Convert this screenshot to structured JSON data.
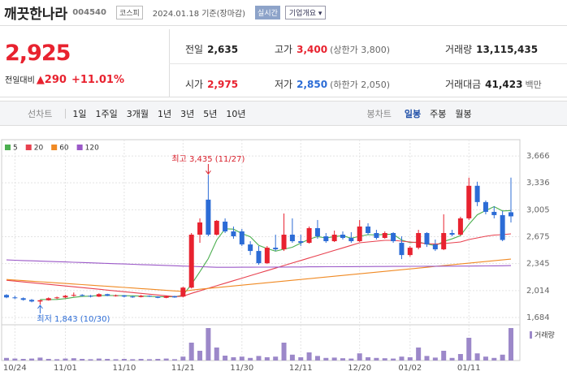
{
  "header": {
    "name": "깨끗한나라",
    "code": "004540",
    "market": "코스피",
    "date": "2024.01.18 기준(장마감)",
    "realtime": "실시간",
    "company_button": "기업개요"
  },
  "quote": {
    "price": "2,925",
    "change_label": "전일대비",
    "change": "▲290",
    "change_rate": "+11.01%",
    "cells": [
      {
        "label": "전일",
        "value": "2,635"
      },
      {
        "label": "고가",
        "value": "3,400",
        "extra": "(상한가 3,800)"
      },
      {
        "label": "거래량",
        "value": "13,115,435"
      },
      {
        "label": "시가",
        "value": "2,975"
      },
      {
        "label": "저가",
        "value": "2,850",
        "extra": "(하한가 2,050)"
      },
      {
        "label": "거래대금",
        "value": "41,423",
        "extra": "백만"
      }
    ]
  },
  "tabs": {
    "line_label": "선차트",
    "line_periods": [
      "1일",
      "1주일",
      "3개월",
      "1년",
      "3년",
      "5년",
      "10년"
    ],
    "candle_label": "봉차트",
    "candle_periods": [
      "일봉",
      "주봉",
      "월봉"
    ],
    "active": "일봉"
  },
  "chart_data": {
    "type": "candlestick",
    "categories": [
      null,
      "10/24",
      null,
      null,
      null,
      null,
      null,
      "11/01",
      null,
      null,
      null,
      null,
      null,
      null,
      "11/10",
      null,
      null,
      null,
      null,
      null,
      null,
      "11/21",
      null,
      null,
      null,
      null,
      null,
      null,
      "11/30",
      null,
      null,
      null,
      null,
      null,
      null,
      "12/11",
      null,
      null,
      null,
      null,
      null,
      null,
      "12/20",
      null,
      null,
      null,
      null,
      null,
      "01/02",
      null,
      null,
      null,
      null,
      null,
      null,
      "01/11",
      null,
      null,
      null,
      null,
      null
    ],
    "open": [
      1960,
      1930,
      1920,
      1900,
      1880,
      1895,
      1920,
      1930,
      1950,
      1960,
      1950,
      1940,
      1970,
      1950,
      1955,
      1940,
      1935,
      1950,
      1940,
      1925,
      1945,
      1940,
      2050,
      2700,
      3130,
      2700,
      2860,
      2740,
      2740,
      2580,
      2500,
      2350,
      2540,
      2520,
      2700,
      2620,
      2600,
      2780,
      2680,
      2620,
      2700,
      2660,
      2620,
      2800,
      2720,
      2660,
      2720,
      2600,
      2450,
      2540,
      2720,
      2580,
      2520,
      2720,
      2700,
      2900,
      3300,
      3100,
      2980,
      2940,
      2975
    ],
    "high": [
      1970,
      1950,
      1930,
      1910,
      1900,
      1930,
      1940,
      1960,
      1990,
      1970,
      1960,
      1980,
      1975,
      1965,
      1960,
      1950,
      1960,
      1955,
      1945,
      1950,
      1950,
      2060,
      2720,
      2900,
      3435,
      2880,
      2900,
      2800,
      2770,
      2620,
      2560,
      2560,
      2700,
      2960,
      2900,
      2700,
      2800,
      2880,
      2720,
      2750,
      2740,
      2730,
      2880,
      2840,
      2760,
      2740,
      2730,
      2680,
      2560,
      2760,
      2730,
      2640,
      2950,
      2760,
      2920,
      3400,
      3350,
      3120,
      3050,
      2990,
      3400
    ],
    "low": [
      1920,
      1910,
      1890,
      1870,
      1843,
      1890,
      1910,
      1920,
      1940,
      1940,
      1930,
      1935,
      1945,
      1940,
      1930,
      1925,
      1930,
      1935,
      1920,
      1920,
      1925,
      1930,
      2040,
      2600,
      2680,
      2690,
      2720,
      2650,
      2560,
      2450,
      2330,
      2340,
      2500,
      2500,
      2600,
      2560,
      2590,
      2650,
      2600,
      2610,
      2640,
      2600,
      2610,
      2700,
      2640,
      2650,
      2600,
      2400,
      2430,
      2520,
      2550,
      2500,
      2510,
      2680,
      2690,
      2880,
      3050,
      2950,
      2900,
      2620,
      2850
    ],
    "close": [
      1930,
      1920,
      1900,
      1880,
      1895,
      1920,
      1930,
      1950,
      1960,
      1950,
      1940,
      1970,
      1950,
      1955,
      1940,
      1935,
      1950,
      1940,
      1925,
      1945,
      1930,
      2050,
      2700,
      2850,
      2700,
      2870,
      2740,
      2680,
      2580,
      2500,
      2350,
      2540,
      2520,
      2700,
      2620,
      2600,
      2780,
      2680,
      2620,
      2700,
      2660,
      2620,
      2800,
      2720,
      2660,
      2720,
      2620,
      2450,
      2540,
      2720,
      2580,
      2520,
      2720,
      2700,
      2900,
      3300,
      3100,
      2980,
      2940,
      2635,
      2925
    ],
    "up_color": "#e8222f",
    "down_color": "#2c6cd6",
    "ma": [
      {
        "name": "5",
        "color": "#4caf50",
        "values": [
          null,
          null,
          null,
          null,
          1905,
          1903,
          1905,
          1915,
          1931,
          1942,
          1946,
          1954,
          1954,
          1953,
          1951,
          1950,
          1946,
          1944,
          1938,
          1939,
          1938,
          1958,
          2090,
          2245,
          2406,
          2634,
          2772,
          2768,
          2714,
          2674,
          2570,
          2530,
          2498,
          2522,
          2546,
          2596,
          2644,
          2676,
          2660,
          2676,
          2688,
          2656,
          2680,
          2700,
          2696,
          2704,
          2704,
          2634,
          2602,
          2610,
          2586,
          2566,
          2616,
          2648,
          2688,
          2828,
          2944,
          2996,
          3044,
          2991,
          2996
        ]
      },
      {
        "name": "20",
        "color": "#e8414f",
        "values": [
          2140,
          2130,
          2120,
          2110,
          2100,
          2090,
          2080,
          2070,
          2060,
          2050,
          2040,
          2030,
          2020,
          2010,
          2000,
          1990,
          1980,
          1970,
          1960,
          1950,
          1940,
          1945,
          1980,
          2011,
          2042,
          2073,
          2104,
          2135,
          2166,
          2197,
          2228,
          2259,
          2290,
          2321,
          2352,
          2383,
          2414,
          2445,
          2476,
          2507,
          2538,
          2569,
          2600,
          2610,
          2620,
          2630,
          2630,
          2620,
          2610,
          2600,
          2590,
          2585,
          2590,
          2600,
          2610,
          2640,
          2660,
          2680,
          2695,
          2700,
          2710
        ]
      },
      {
        "name": "60",
        "color": "#f08a24",
        "values": [
          2150,
          2143,
          2136,
          2129,
          2122,
          2115,
          2108,
          2101,
          2094,
          2087,
          2080,
          2073,
          2066,
          2059,
          2052,
          2045,
          2038,
          2031,
          2024,
          2017,
          2010,
          2005,
          2020,
          2030,
          2040,
          2050,
          2060,
          2070,
          2080,
          2090,
          2100,
          2110,
          2120,
          2130,
          2140,
          2150,
          2160,
          2170,
          2180,
          2190,
          2200,
          2210,
          2220,
          2230,
          2240,
          2250,
          2260,
          2270,
          2280,
          2290,
          2300,
          2310,
          2320,
          2330,
          2340,
          2350,
          2360,
          2370,
          2380,
          2390,
          2400
        ]
      },
      {
        "name": "120",
        "color": "#9b59c8",
        "values": [
          2390,
          2386,
          2382,
          2379,
          2375,
          2372,
          2368,
          2365,
          2361,
          2358,
          2354,
          2350,
          2347,
          2343,
          2340,
          2336,
          2332,
          2329,
          2325,
          2322,
          2318,
          2314,
          2311,
          2307,
          2304,
          2300,
          2300,
          2300,
          2301,
          2301,
          2302,
          2302,
          2303,
          2303,
          2304,
          2304,
          2305,
          2305,
          2306,
          2306,
          2307,
          2307,
          2308,
          2308,
          2309,
          2309,
          2310,
          2310,
          2311,
          2311,
          2312,
          2312,
          2313,
          2313,
          2314,
          2314,
          2315,
          2316,
          2317,
          2318,
          2320
        ]
      }
    ],
    "volume_name": "거래량",
    "volume_color": "#9c88c9",
    "volume": [
      8,
      6,
      5,
      6,
      9,
      5,
      4,
      6,
      7,
      5,
      4,
      6,
      5,
      4,
      5,
      4,
      5,
      4,
      5,
      6,
      4,
      12,
      55,
      30,
      100,
      40,
      15,
      10,
      12,
      8,
      14,
      10,
      12,
      55,
      18,
      10,
      25,
      14,
      8,
      9,
      7,
      6,
      22,
      10,
      8,
      7,
      6,
      12,
      10,
      40,
      14,
      9,
      30,
      8,
      20,
      70,
      22,
      12,
      8,
      18,
      100
    ],
    "vlim": [
      0,
      100
    ],
    "ylim": [
      1594,
      3866
    ],
    "yticks": [
      {
        "value": 3666,
        "label": "3,666"
      },
      {
        "value": 3336,
        "label": "3,336"
      },
      {
        "value": 3005,
        "label": "3,005"
      },
      {
        "value": 2675,
        "label": "2,675"
      },
      {
        "value": 2345,
        "label": "2,345"
      },
      {
        "value": 2014,
        "label": "2,014"
      },
      {
        "value": 1684,
        "label": "1,684"
      }
    ],
    "grid": true,
    "annotations": [
      {
        "text": "최고 3,435 (11/27)",
        "color": "#d81e2a"
      },
      {
        "text": "최저 1,843 (10/30)",
        "color": "#2c6cd6"
      }
    ]
  }
}
